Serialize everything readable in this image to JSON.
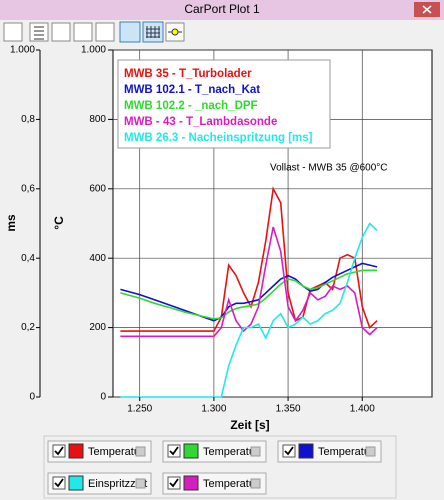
{
  "window": {
    "title": "CarPort Plot 1"
  },
  "chart_data": {
    "type": "line",
    "annotation": "Vollast - MWB 35 @600°C",
    "xlabel": "Zeit [s]",
    "ylabel": "°C",
    "y2label": "ms",
    "x": [
      1.237,
      1.25,
      1.26,
      1.27,
      1.28,
      1.29,
      1.3,
      1.305,
      1.31,
      1.315,
      1.32,
      1.325,
      1.33,
      1.335,
      1.34,
      1.345,
      1.35,
      1.355,
      1.36,
      1.365,
      1.37,
      1.375,
      1.38,
      1.385,
      1.39,
      1.395,
      1.4,
      1.405,
      1.41
    ],
    "xlim": [
      1.232,
      1.447
    ],
    "xticks": [
      {
        "value": 1.25,
        "label": "1.250"
      },
      {
        "value": 1.3,
        "label": "1.300"
      },
      {
        "value": 1.35,
        "label": "1.350"
      },
      {
        "value": 1.4,
        "label": "1.400"
      }
    ],
    "ylim": [
      0,
      1000
    ],
    "yticks": [
      0,
      200,
      400,
      600,
      800,
      {
        "value": 1000,
        "label": "1.000"
      }
    ],
    "y2lim": [
      0,
      1
    ],
    "y2ticks": [
      0,
      {
        "value": 0.2,
        "label": "0,2"
      },
      {
        "value": 0.4,
        "label": "0,4"
      },
      {
        "value": 0.6,
        "label": "0,6"
      },
      {
        "value": 0.8,
        "label": "0,8"
      },
      {
        "value": 1,
        "label": "1.000"
      }
    ],
    "grid": true,
    "series": [
      {
        "name": "MWB 35 - T_Turbolader",
        "color": "#e81010",
        "values": [
          190,
          190,
          190,
          190,
          190,
          190,
          190,
          230,
          380,
          350,
          300,
          260,
          330,
          450,
          600,
          560,
          300,
          220,
          230,
          310,
          320,
          330,
          310,
          400,
          410,
          400,
          260,
          200,
          220
        ]
      },
      {
        "name": "MWB 102.1 - T_nach_Kat",
        "color": "#1010d0",
        "values": [
          310,
          295,
          280,
          265,
          250,
          235,
          220,
          230,
          260,
          270,
          270,
          275,
          280,
          300,
          320,
          340,
          350,
          340,
          320,
          305,
          310,
          330,
          345,
          355,
          365,
          375,
          385,
          380,
          375
        ]
      },
      {
        "name": "MWB 102.2 - _nach_DPF",
        "color": "#30d830",
        "values": [
          300,
          285,
          270,
          258,
          245,
          235,
          225,
          228,
          245,
          255,
          260,
          263,
          268,
          285,
          305,
          325,
          340,
          335,
          320,
          310,
          315,
          325,
          335,
          345,
          355,
          360,
          365,
          365,
          365
        ]
      },
      {
        "name": "MWB - 43  - T_Lambdasonde",
        "color": "#d81cc0",
        "values": [
          175,
          175,
          175,
          175,
          175,
          175,
          175,
          200,
          280,
          220,
          190,
          210,
          260,
          380,
          490,
          420,
          260,
          220,
          250,
          300,
          280,
          290,
          320,
          310,
          320,
          300,
          200,
          180,
          200
        ]
      },
      {
        "name": "MWB 26.3 - Nacheinspritzung [ms]",
        "color": "#22e8e8",
        "axis": "y2",
        "values": [
          0,
          0,
          0,
          0,
          0,
          0,
          0,
          0,
          0.09,
          0.15,
          0.2,
          0.2,
          0.21,
          0.17,
          0.22,
          0.24,
          0.2,
          0.21,
          0.23,
          0.21,
          0.22,
          0.24,
          0.25,
          0.27,
          0.33,
          0.4,
          0.46,
          0.5,
          0.48
        ]
      }
    ]
  },
  "legend_panel": [
    {
      "label": "Temperatur",
      "color": "#e81010"
    },
    {
      "label": "Temperatur",
      "color": "#30d830"
    },
    {
      "label": "Temperatur",
      "color": "#1010d0"
    },
    {
      "label": "Einspritzzeit",
      "color": "#22e8e8"
    },
    {
      "label": "Temperatur",
      "color": "#d81cc0"
    }
  ]
}
